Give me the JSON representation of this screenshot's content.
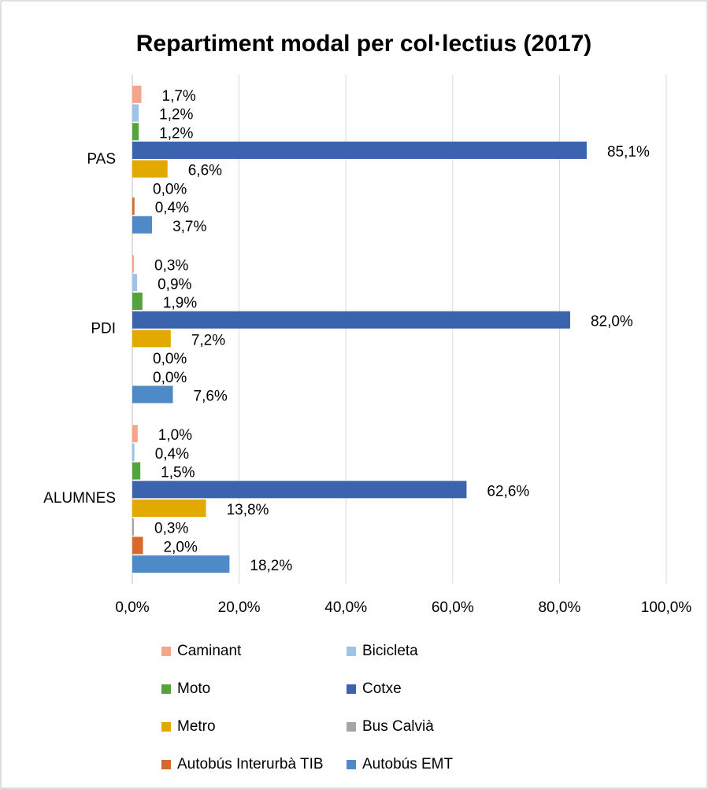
{
  "chart_data": {
    "type": "hbar",
    "title": "Repartiment modal per col·lectius (2017)",
    "categories": [
      "PAS",
      "PDI",
      "ALUMNES"
    ],
    "series": [
      {
        "name": "Caminant",
        "color": "#f4a58a",
        "values": [
          1.7,
          0.3,
          1.0
        ],
        "value_labels": [
          "1,7%",
          "0,3%",
          "1,0%"
        ]
      },
      {
        "name": "Bicicleta",
        "color": "#9dc3e6",
        "values": [
          1.2,
          0.9,
          0.4
        ],
        "value_labels": [
          "1,2%",
          "0,9%",
          "0,4%"
        ]
      },
      {
        "name": "Moto",
        "color": "#55a33f",
        "values": [
          1.2,
          1.9,
          1.5
        ],
        "value_labels": [
          "1,2%",
          "1,9%",
          "1,5%"
        ]
      },
      {
        "name": "Cotxe",
        "color": "#3b63ae",
        "values": [
          85.1,
          82.0,
          62.6
        ],
        "value_labels": [
          "85,1%",
          "82,0%",
          "62,6%"
        ]
      },
      {
        "name": "Metro",
        "color": "#e2aa00",
        "values": [
          6.6,
          7.2,
          13.8
        ],
        "value_labels": [
          "6,6%",
          "7,2%",
          "13,8%"
        ]
      },
      {
        "name": "Bus Calvià",
        "color": "#a5a5a5",
        "values": [
          0.0,
          0.0,
          0.3
        ],
        "value_labels": [
          "0,0%",
          "0,0%",
          "0,3%"
        ]
      },
      {
        "name": "Autobús Interurbà TIB",
        "color": "#d9692a",
        "values": [
          0.4,
          0.0,
          2.0
        ],
        "value_labels": [
          "0,4%",
          "0,0%",
          "2,0%"
        ]
      },
      {
        "name": "Autobús EMT",
        "color": "#4e8ac6",
        "values": [
          3.7,
          7.6,
          18.2
        ],
        "value_labels": [
          "3,7%",
          "7,6%",
          "18,2%"
        ]
      }
    ],
    "xlim": [
      0,
      100
    ],
    "xticks": [
      {
        "value": 0,
        "label": "0,0%"
      },
      {
        "value": 20,
        "label": "20,0%"
      },
      {
        "value": 40,
        "label": "40,0%"
      },
      {
        "value": 60,
        "label": "60,0%"
      },
      {
        "value": 80,
        "label": "80,0%"
      },
      {
        "value": 100,
        "label": "100,0%"
      }
    ],
    "grid": true
  }
}
